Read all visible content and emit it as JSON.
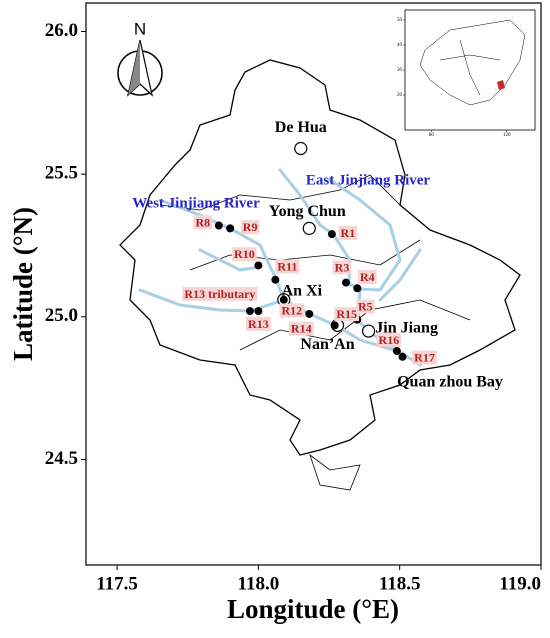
{
  "north_label": "N",
  "chart_data": {
    "type": "map",
    "x_label": "Longitude (°E)",
    "y_label": "Latitude (°N)",
    "xlim": [
      117.39,
      119.0
    ],
    "ylim": [
      24.13,
      26.1
    ],
    "xticks": [
      117.5,
      {
        "value": 118,
        "label": "118.0"
      },
      118.5,
      {
        "value": 119,
        "label": "119.0"
      }
    ],
    "yticks": [
      24.5,
      {
        "value": 25,
        "label": "25.0"
      },
      25.5,
      {
        "value": 26,
        "label": "26.0"
      }
    ],
    "annotations": [
      "East Jinjiang River",
      "West Jinjiang River",
      "Quan zhou Bay"
    ],
    "sites": {
      "color": "#000000",
      "names": [
        "R1",
        "R3",
        "R4",
        "R5",
        "R8",
        "R9",
        "R10",
        "R11",
        "R12",
        "R13 tributary",
        "R13",
        "R14",
        "R15",
        "R16",
        "R17"
      ],
      "x": [
        118.26,
        118.31,
        118.35,
        118.35,
        117.86,
        117.9,
        118.0,
        118.06,
        118.09,
        117.97,
        118.0,
        118.18,
        118.27,
        118.49,
        118.51
      ],
      "y": [
        25.29,
        25.12,
        25.1,
        24.99,
        25.32,
        25.31,
        25.18,
        25.13,
        25.06,
        25.02,
        25.02,
        25.01,
        24.97,
        24.88,
        24.86
      ]
    },
    "towns": {
      "names": [
        "De Hua",
        "Yong Chun",
        "An Xi",
        "Nan’An",
        "Jin Jiang"
      ],
      "x": [
        118.15,
        118.18,
        118.09,
        118.28,
        118.39
      ],
      "y": [
        25.59,
        25.31,
        25.06,
        24.97,
        24.95
      ]
    },
    "inset": {
      "xlim": [
        66,
        135
      ],
      "ylim": [
        6,
        54
      ],
      "xticks": [
        80,
        120
      ],
      "yticks": [
        20,
        30,
        40,
        50
      ]
    }
  }
}
